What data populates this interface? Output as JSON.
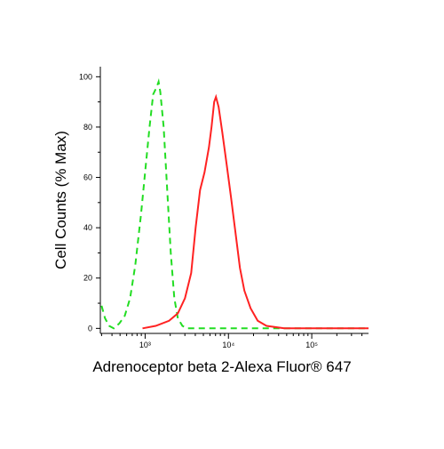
{
  "chart_data": {
    "type": "line",
    "xlabel": "Adrenoceptor beta 2-Alexa Fluor® 647",
    "ylabel": "Cell Counts (% Max)",
    "xscale": "log",
    "xlim": [
      290,
      480000
    ],
    "ylim": [
      -2,
      104
    ],
    "xticks": [
      {
        "value": 1000,
        "label": "10³"
      },
      {
        "value": 10000,
        "label": "10⁴"
      },
      {
        "value": 100000,
        "label": "10⁵"
      }
    ],
    "xminorticks": [
      300,
      400,
      500,
      600,
      700,
      800,
      900,
      2000,
      3000,
      4000,
      5000,
      6000,
      7000,
      8000,
      9000,
      20000,
      30000,
      40000,
      50000,
      60000,
      70000,
      80000,
      90000,
      200000,
      300000,
      400000
    ],
    "yticks": [
      0,
      20,
      40,
      60,
      80,
      100
    ],
    "yminorticks": [
      10,
      30,
      50,
      70,
      90
    ],
    "series": [
      {
        "color": "#22dd22",
        "dash": true,
        "x": [
          300,
          330,
          370,
          420,
          490,
          570,
          660,
          760,
          890,
          1000,
          1130,
          1250,
          1380,
          1450,
          1520,
          1670,
          1840,
          2030,
          2240,
          2470,
          2800,
          3200,
          8400,
          28600,
          480000
        ],
        "values": [
          9,
          4,
          1,
          0,
          2,
          5,
          12,
          25,
          45,
          62,
          80,
          93,
          96,
          98,
          94,
          80,
          55,
          30,
          12,
          4,
          1,
          0,
          0,
          0,
          0
        ]
      },
      {
        "color": "#ff2222",
        "dash": false,
        "x": [
          930,
          1340,
          1940,
          2470,
          3010,
          3570,
          4040,
          4560,
          5160,
          5830,
          6270,
          6750,
          7090,
          7620,
          8420,
          9520,
          10760,
          12160,
          13740,
          15530,
          18450,
          22430,
          28600,
          46700,
          480000
        ],
        "values": [
          0,
          1,
          3,
          6,
          12,
          22,
          40,
          55,
          62,
          72,
          80,
          90,
          92,
          88,
          78,
          65,
          52,
          38,
          24,
          15,
          8,
          3,
          1,
          0,
          0
        ]
      }
    ]
  }
}
